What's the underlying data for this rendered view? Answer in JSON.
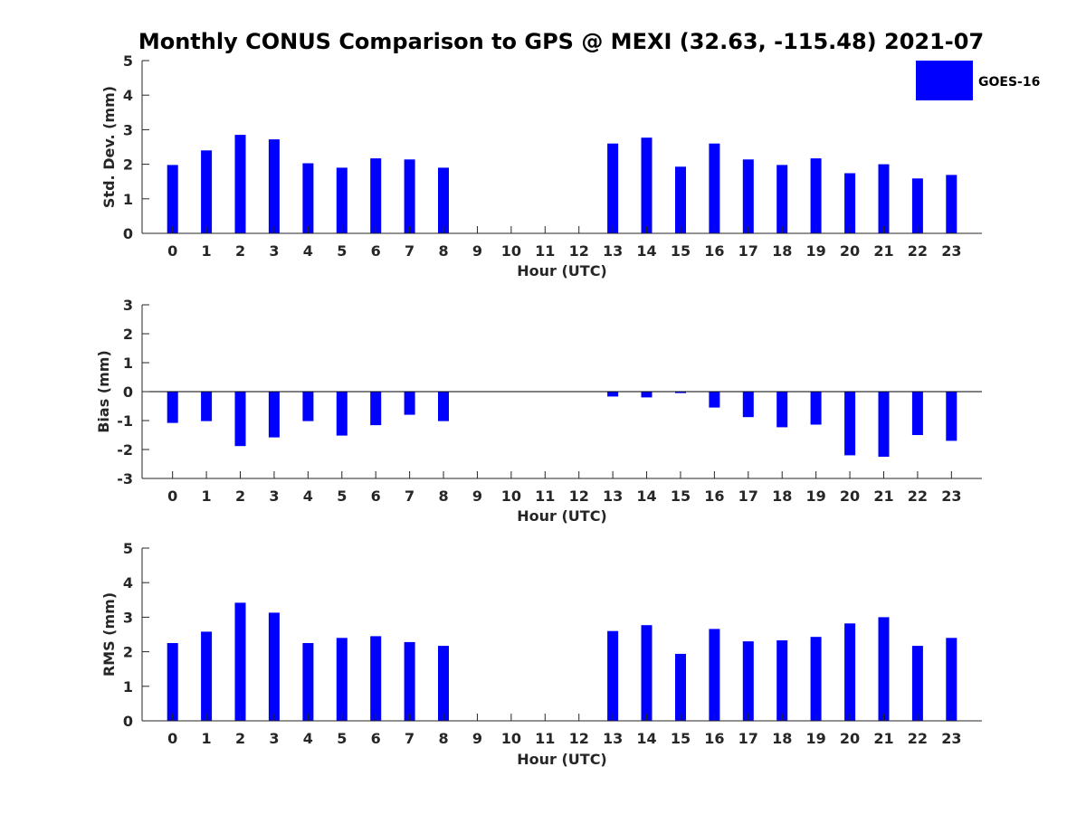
{
  "figure": {
    "title": "Monthly CONUS Comparison to GPS @ MEXI (32.63, -115.48) 2021-07",
    "legend_label": "GOES-16",
    "legend_placement": "top-right",
    "bar_color": "#0000ff"
  },
  "chart_data": [
    {
      "type": "bar",
      "xlabel": "Hour (UTC)",
      "ylabel": "Std. Dev. (mm)",
      "ylim": [
        0,
        5
      ],
      "yticks": [
        0,
        1,
        2,
        3,
        4,
        5
      ],
      "categories": [
        "0",
        "1",
        "2",
        "3",
        "4",
        "5",
        "6",
        "7",
        "8",
        "9",
        "10",
        "11",
        "12",
        "13",
        "14",
        "15",
        "16",
        "17",
        "18",
        "19",
        "20",
        "21",
        "22",
        "23"
      ],
      "series": [
        {
          "name": "GOES-16",
          "values": [
            1.98,
            2.4,
            2.85,
            2.72,
            2.03,
            1.9,
            2.17,
            2.14,
            1.9,
            null,
            null,
            null,
            null,
            2.6,
            2.77,
            1.93,
            2.6,
            2.14,
            1.98,
            2.17,
            1.74,
            2.0,
            1.59,
            1.69
          ]
        }
      ]
    },
    {
      "type": "bar",
      "xlabel": "Hour (UTC)",
      "ylabel": "Bias (mm)",
      "ylim": [
        -3,
        3
      ],
      "yticks": [
        -3,
        -2,
        -1,
        0,
        1,
        2,
        3
      ],
      "categories": [
        "0",
        "1",
        "2",
        "3",
        "4",
        "5",
        "6",
        "7",
        "8",
        "9",
        "10",
        "11",
        "12",
        "13",
        "14",
        "15",
        "16",
        "17",
        "18",
        "19",
        "20",
        "21",
        "22",
        "23"
      ],
      "series": [
        {
          "name": "GOES-16",
          "values": [
            -1.08,
            -1.02,
            -1.88,
            -1.58,
            -1.02,
            -1.52,
            -1.16,
            -0.8,
            -1.02,
            null,
            null,
            null,
            null,
            -0.17,
            -0.2,
            -0.05,
            -0.55,
            -0.88,
            -1.23,
            -1.14,
            -2.2,
            -2.25,
            -1.5,
            -1.7
          ]
        }
      ]
    },
    {
      "type": "bar",
      "xlabel": "Hour (UTC)",
      "ylabel": "RMS (mm)",
      "ylim": [
        0,
        5
      ],
      "yticks": [
        0,
        1,
        2,
        3,
        4,
        5
      ],
      "categories": [
        "0",
        "1",
        "2",
        "3",
        "4",
        "5",
        "6",
        "7",
        "8",
        "9",
        "10",
        "11",
        "12",
        "13",
        "14",
        "15",
        "16",
        "17",
        "18",
        "19",
        "20",
        "21",
        "22",
        "23"
      ],
      "series": [
        {
          "name": "GOES-16",
          "values": [
            2.25,
            2.58,
            3.42,
            3.13,
            2.25,
            2.4,
            2.45,
            2.28,
            2.17,
            null,
            null,
            null,
            null,
            2.6,
            2.77,
            1.94,
            2.66,
            2.3,
            2.33,
            2.43,
            2.82,
            3.0,
            2.17,
            2.4
          ]
        }
      ]
    }
  ]
}
